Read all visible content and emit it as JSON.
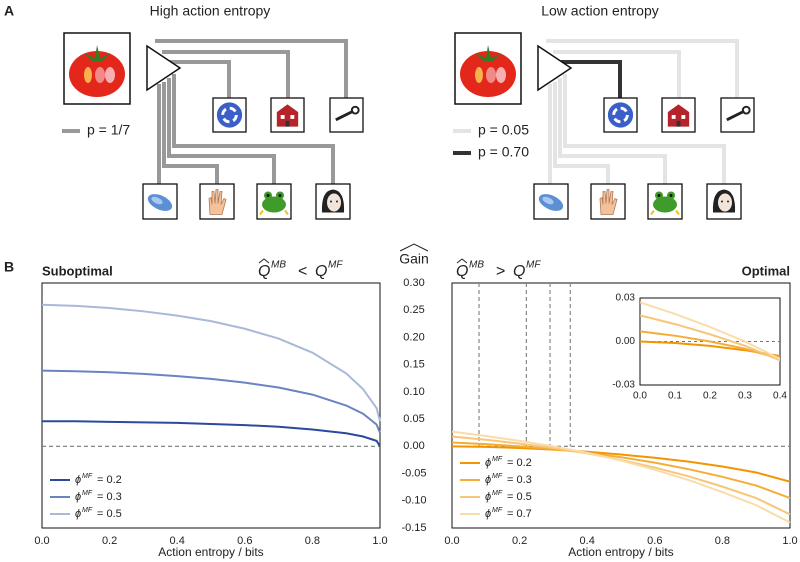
{
  "panel_a": {
    "label": "A",
    "high": {
      "title": "High action entropy",
      "legend": "p = 1/7",
      "color": "#999999"
    },
    "low": {
      "title": "Low action entropy",
      "legend": [
        "p = 0.05",
        "p = 0.70"
      ],
      "colors": [
        "#e4e4e4",
        "#333333"
      ]
    }
  },
  "panel_b_label": "B",
  "chart_data": [
    {
      "type": "line",
      "title": "Suboptimal",
      "title_color": "#3a5ba6",
      "condition": {
        "q1": "Q",
        "sup1": "MB",
        "op": "<",
        "q2": "Q",
        "sup2": "MF"
      },
      "ylabel": "Gain",
      "ylim": [
        -0.15,
        0.3
      ],
      "yticks": [
        {
          "value": 0.3,
          "label": "0.30"
        },
        0.25,
        {
          "value": 0.2,
          "label": "0.20"
        },
        0.15,
        {
          "value": 0.1,
          "label": "0.10"
        },
        0.05,
        {
          "value": 0,
          "label": "0.00"
        },
        -0.05,
        {
          "value": -0.1,
          "label": "-0.10"
        },
        -0.15
      ],
      "xlim": [
        0,
        1
      ],
      "xticks": [
        {
          "value": 0,
          "label": "0.0"
        },
        0.2,
        0.4,
        0.6,
        0.8,
        {
          "value": 1,
          "label": "1.0"
        }
      ],
      "xlabel": "Action entropy / bits",
      "hline": 0,
      "legend_loc": "lower left",
      "legend_symbol": "ϕ",
      "legend_sup": "MF",
      "x": [
        0,
        0.1,
        0.2,
        0.3,
        0.4,
        0.5,
        0.6,
        0.7,
        0.8,
        0.9,
        0.95,
        0.99,
        1.0
      ],
      "series": [
        {
          "name": "= 0.2",
          "color": "#2b4a9e",
          "values": [
            0.046,
            0.046,
            0.045,
            0.044,
            0.043,
            0.041,
            0.039,
            0.036,
            0.031,
            0.024,
            0.018,
            0.01,
            0.0
          ]
        },
        {
          "name": "= 0.3",
          "color": "#6a84bf",
          "values": [
            0.139,
            0.138,
            0.136,
            0.133,
            0.129,
            0.124,
            0.117,
            0.108,
            0.095,
            0.075,
            0.06,
            0.04,
            0.025
          ]
        },
        {
          "name": "= 0.5",
          "color": "#a9b9d9",
          "values": [
            0.26,
            0.258,
            0.254,
            0.248,
            0.24,
            0.23,
            0.216,
            0.198,
            0.172,
            0.134,
            0.105,
            0.07,
            0.046
          ]
        }
      ]
    },
    {
      "type": "line",
      "title": "Optimal",
      "title_color": "#f5a31a",
      "condition": {
        "q1": "Q",
        "sup1": "MB",
        "op": ">",
        "q2": "Q",
        "sup2": "MF"
      },
      "ylim": [
        -0.15,
        0.3
      ],
      "xlim": [
        0,
        1
      ],
      "xticks": [
        {
          "value": 0,
          "label": "0.0"
        },
        0.2,
        0.4,
        0.6,
        0.8,
        {
          "value": 1,
          "label": "1.0"
        }
      ],
      "xlabel": "Action entropy / bits",
      "hline": 0,
      "vlines": [
        0.08,
        0.22,
        0.29,
        0.35
      ],
      "legend_loc": "lower left",
      "legend_symbol": "ϕ",
      "legend_sup": "MF",
      "x": [
        0,
        0.1,
        0.2,
        0.3,
        0.4,
        0.5,
        0.6,
        0.7,
        0.8,
        0.9,
        1.0
      ],
      "series": [
        {
          "name": "= 0.2",
          "color": "#f29500",
          "values": [
            0.0,
            -0.001,
            -0.003,
            -0.006,
            -0.01,
            -0.015,
            -0.021,
            -0.028,
            -0.037,
            -0.048,
            -0.065
          ]
        },
        {
          "name": "= 0.3",
          "color": "#f5ad3a",
          "values": [
            0.007,
            0.004,
            0.0,
            -0.005,
            -0.012,
            -0.02,
            -0.03,
            -0.042,
            -0.056,
            -0.072,
            -0.095
          ]
        },
        {
          "name": "= 0.5",
          "color": "#f7c677",
          "values": [
            0.018,
            0.012,
            0.005,
            -0.003,
            -0.013,
            -0.025,
            -0.039,
            -0.055,
            -0.074,
            -0.095,
            -0.125
          ]
        },
        {
          "name": "= 0.7",
          "color": "#fadcab",
          "values": [
            0.027,
            0.019,
            0.01,
            0.0,
            -0.012,
            -0.026,
            -0.043,
            -0.062,
            -0.084,
            -0.108,
            -0.14
          ]
        }
      ],
      "inset": {
        "xlim": [
          0,
          0.4
        ],
        "ylim": [
          -0.03,
          0.03
        ],
        "xticks": [
          {
            "value": 0,
            "label": "0.0"
          },
          0.1,
          0.2,
          0.3,
          0.4
        ],
        "yticks": [
          0.03,
          {
            "value": 0,
            "label": "0.00"
          },
          -0.03
        ],
        "hline": 0
      }
    }
  ]
}
